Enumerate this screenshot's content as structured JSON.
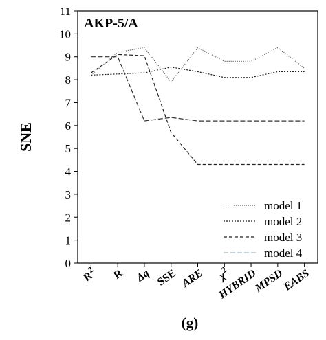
{
  "chart_data": {
    "type": "line",
    "title": "AKP-5/A",
    "ylabel": "SNE",
    "xlabel": "",
    "caption": "(g)",
    "categories": [
      "R",
      "R",
      "Δq",
      "SSE",
      "ARE",
      "χ",
      "HYBRID",
      "MPSD",
      "EABS"
    ],
    "category_superscripts": [
      "2",
      "",
      "",
      "",
      "",
      "2",
      "",
      "",
      ""
    ],
    "category_italic": [
      false,
      false,
      true,
      false,
      true,
      true,
      true,
      true,
      true
    ],
    "ylim": [
      0,
      11
    ],
    "yticks": [
      0,
      1,
      2,
      3,
      4,
      5,
      6,
      7,
      8,
      9,
      10,
      11
    ],
    "grid": false,
    "legend_position": "bottom-right",
    "series": [
      {
        "name": "model 1",
        "values": [
          8.2,
          9.2,
          9.4,
          7.9,
          9.4,
          8.8,
          8.8,
          9.4,
          8.5
        ],
        "color": "#555555",
        "dash": "1,2"
      },
      {
        "name": "model 2",
        "values": [
          8.2,
          8.25,
          8.3,
          8.55,
          8.35,
          8.1,
          8.1,
          8.35,
          8.35
        ],
        "color": "#1a1a1a",
        "dash": "2,2"
      },
      {
        "name": "model 3",
        "values": [
          8.3,
          9.1,
          9.05,
          5.7,
          4.3,
          4.3,
          4.3,
          4.3,
          4.3
        ],
        "color": "#222222",
        "dash": "5,3"
      },
      {
        "name": "model 4",
        "values": [
          9.0,
          9.0,
          6.2,
          6.35,
          6.2,
          6.2,
          6.2,
          6.2,
          6.2
        ],
        "color": "#333333",
        "dash": "7,3"
      }
    ]
  },
  "legend_sample_colors": {
    "model 4": "#9fb7c4"
  }
}
